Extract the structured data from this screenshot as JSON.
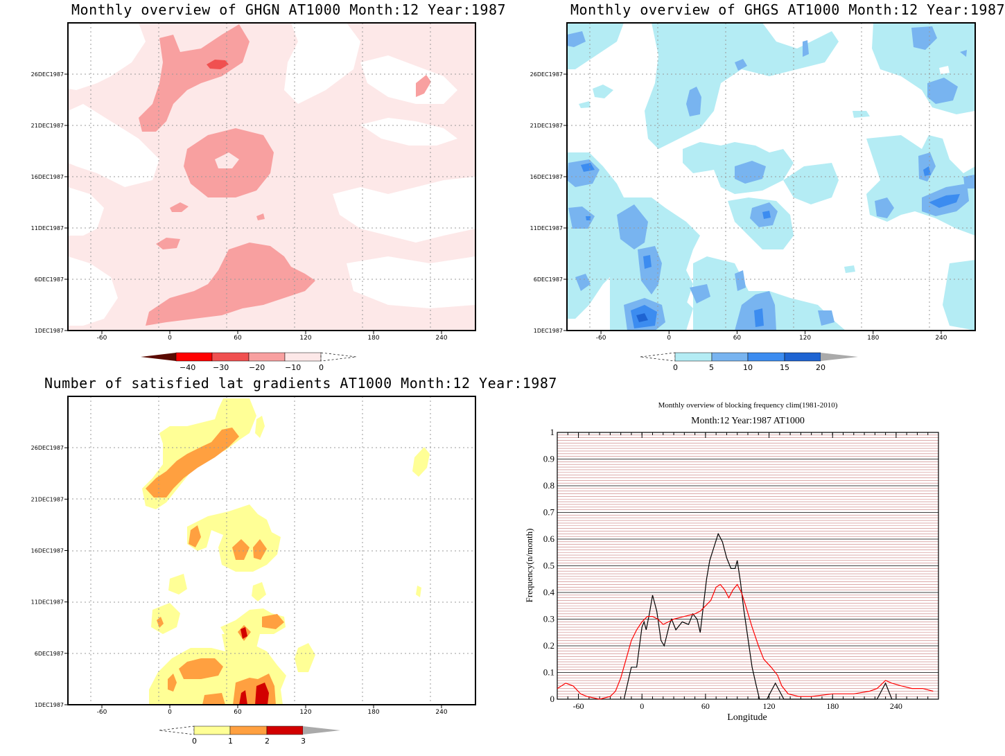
{
  "panels": {
    "ghgn": {
      "title": "Monthly overview of GHGN AT1000 Month:12 Year:1987",
      "colorbar": {
        "labels": [
          "−40",
          "−30",
          "−20",
          "−10",
          "0"
        ],
        "colors": [
          "#5a0a00",
          "#ff0000",
          "#f05050",
          "#f8a0a0",
          "#fde8e8"
        ]
      }
    },
    "ghgs": {
      "title": "Monthly overview of GHGS AT1000 Month:12 Year:1987",
      "colorbar": {
        "labels": [
          "0",
          "5",
          "10",
          "15",
          "20"
        ],
        "colors": [
          "#b4ecf4",
          "#78b4f0",
          "#3c8cf0",
          "#1e64d2",
          "#aaaaaa"
        ]
      }
    },
    "grad": {
      "title": "Number of satisfied lat gradients AT1000 Month:12 Year:1987",
      "colorbar": {
        "labels": [
          "0",
          "1",
          "2",
          "3"
        ],
        "colors": [
          "#ffff96",
          "#ffa040",
          "#d20000",
          "#aaaaaa"
        ]
      }
    },
    "freq": {
      "title": "Monthly overview of blocking frequency clim(1981-2010)",
      "subtitle": "Month:12 Year:1987  AT1000"
    }
  },
  "map_axes": {
    "x_ticks": [
      "-60",
      "0",
      "60",
      "120",
      "180",
      "240"
    ],
    "y_ticks": [
      "1DEC1987",
      "6DEC1987",
      "11DEC1987",
      "16DEC1987",
      "21DEC1987",
      "26DEC1987"
    ]
  },
  "chart_data": [
    {
      "type": "heatmap",
      "title": "Monthly overview of GHGN AT1000 Month:12 Year:1987",
      "x": "longitude",
      "xlim": [
        -90,
        270
      ],
      "y": "date",
      "ylim": [
        "1DEC1987",
        "31DEC1987"
      ],
      "levels": [
        -40,
        -30,
        -20,
        -10,
        0
      ],
      "colors": [
        "#5a0a00",
        "#ff0000",
        "#f05050",
        "#f8a0a0",
        "#fde8e8"
      ]
    },
    {
      "type": "heatmap",
      "title": "Monthly overview of GHGS AT1000 Month:12 Year:1987",
      "x": "longitude",
      "xlim": [
        -90,
        270
      ],
      "y": "date",
      "ylim": [
        "1DEC1987",
        "31DEC1987"
      ],
      "levels": [
        0,
        5,
        10,
        15,
        20
      ],
      "colors": [
        "#b4ecf4",
        "#78b4f0",
        "#3c8cf0",
        "#1e64d2"
      ]
    },
    {
      "type": "heatmap",
      "title": "Number of satisfied lat gradients AT1000 Month:12 Year:1987",
      "x": "longitude",
      "xlim": [
        -90,
        270
      ],
      "y": "date",
      "ylim": [
        "1DEC1987",
        "31DEC1987"
      ],
      "levels": [
        0,
        1,
        2,
        3
      ],
      "colors": [
        "#ffff96",
        "#ffa040",
        "#d20000"
      ]
    },
    {
      "type": "line",
      "title": "Monthly overview of blocking frequency clim(1981-2010)",
      "subtitle": "Month:12 Year:1987  AT1000",
      "xlabel": "Longitude",
      "ylabel": "Frequency(n/month)",
      "xlim": [
        -80,
        280
      ],
      "ylim": [
        0,
        1
      ],
      "x_ticks": [
        -60,
        0,
        60,
        120,
        180,
        240
      ],
      "y_ticks": [
        0,
        0.1,
        0.2,
        0.3,
        0.4,
        0.5,
        0.6,
        0.7,
        0.8,
        0.9,
        1
      ],
      "series": [
        {
          "color": "#000000",
          "points": [
            [
              -17,
              0
            ],
            [
              -10,
              0.12
            ],
            [
              -5,
              0.12
            ],
            [
              0,
              0.27
            ],
            [
              2,
              0.29
            ],
            [
              4,
              0.26
            ],
            [
              7,
              0.32
            ],
            [
              10,
              0.39
            ],
            [
              14,
              0.33
            ],
            [
              18,
              0.22
            ],
            [
              21,
              0.2
            ],
            [
              26,
              0.28
            ],
            [
              28,
              0.3
            ],
            [
              32,
              0.26
            ],
            [
              38,
              0.29
            ],
            [
              44,
              0.28
            ],
            [
              48,
              0.32
            ],
            [
              52,
              0.3
            ],
            [
              55,
              0.25
            ],
            [
              58,
              0.35
            ],
            [
              61,
              0.45
            ],
            [
              64,
              0.52
            ],
            [
              68,
              0.57
            ],
            [
              72,
              0.62
            ],
            [
              76,
              0.59
            ],
            [
              80,
              0.53
            ],
            [
              84,
              0.49
            ],
            [
              88,
              0.49
            ],
            [
              90,
              0.52
            ],
            [
              93,
              0.44
            ],
            [
              96,
              0.34
            ],
            [
              100,
              0.23
            ],
            [
              104,
              0.12
            ],
            [
              108,
              0.05
            ],
            [
              111,
              0
            ],
            [
              118,
              0
            ],
            [
              122,
              0.03
            ],
            [
              126,
              0.06
            ],
            [
              130,
              0.03
            ],
            [
              134,
              0
            ],
            [
              222,
              0
            ],
            [
              226,
              0.03
            ],
            [
              230,
              0.06
            ],
            [
              233,
              0.03
            ],
            [
              236,
              0
            ]
          ]
        },
        {
          "color": "#ff0000",
          "points": [
            [
              -80,
              0.04
            ],
            [
              -72,
              0.06
            ],
            [
              -65,
              0.05
            ],
            [
              -58,
              0.02
            ],
            [
              -52,
              0.01
            ],
            [
              -40,
              0
            ],
            [
              -30,
              0.01
            ],
            [
              -25,
              0.03
            ],
            [
              -20,
              0.08
            ],
            [
              -15,
              0.15
            ],
            [
              -10,
              0.22
            ],
            [
              -5,
              0.26
            ],
            [
              0,
              0.29
            ],
            [
              5,
              0.31
            ],
            [
              10,
              0.31
            ],
            [
              15,
              0.3
            ],
            [
              20,
              0.28
            ],
            [
              25,
              0.29
            ],
            [
              30,
              0.3
            ],
            [
              40,
              0.31
            ],
            [
              50,
              0.32
            ],
            [
              55,
              0.33
            ],
            [
              60,
              0.35
            ],
            [
              65,
              0.37
            ],
            [
              70,
              0.42
            ],
            [
              74,
              0.43
            ],
            [
              78,
              0.41
            ],
            [
              82,
              0.38
            ],
            [
              86,
              0.41
            ],
            [
              90,
              0.43
            ],
            [
              94,
              0.4
            ],
            [
              98,
              0.35
            ],
            [
              104,
              0.27
            ],
            [
              110,
              0.2
            ],
            [
              115,
              0.15
            ],
            [
              122,
              0.12
            ],
            [
              128,
              0.09
            ],
            [
              132,
              0.05
            ],
            [
              138,
              0.02
            ],
            [
              148,
              0.01
            ],
            [
              160,
              0.01
            ],
            [
              180,
              0.02
            ],
            [
              200,
              0.02
            ],
            [
              215,
              0.03
            ],
            [
              222,
              0.04
            ],
            [
              230,
              0.07
            ],
            [
              236,
              0.06
            ],
            [
              245,
              0.05
            ],
            [
              255,
              0.04
            ],
            [
              265,
              0.04
            ],
            [
              275,
              0.03
            ]
          ]
        }
      ]
    }
  ]
}
